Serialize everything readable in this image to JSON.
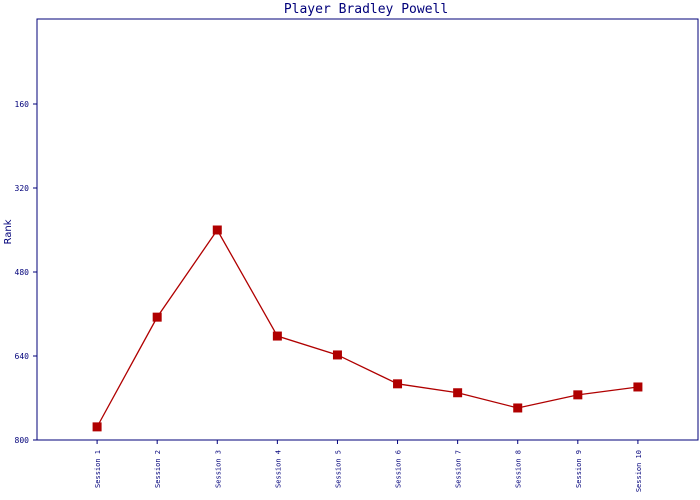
{
  "chart_data": {
    "type": "line",
    "title": "Player Bradley Powell",
    "y_label": "Rank",
    "categories": [
      "Session 1",
      "Session 2",
      "Session 3",
      "Session 4",
      "Session 5",
      "Session 6",
      "Session 7",
      "Session 8",
      "Session 9",
      "Session 10"
    ],
    "series": [
      {
        "name": "Rank",
        "color": "#b00000",
        "values": [
          775,
          566,
          400,
          602,
          638,
          693,
          710,
          739,
          714,
          699
        ]
      }
    ],
    "ylim": [
      0,
      800
    ],
    "yticks": [
      160,
      320,
      480,
      640,
      800
    ],
    "y_inverted": true
  }
}
